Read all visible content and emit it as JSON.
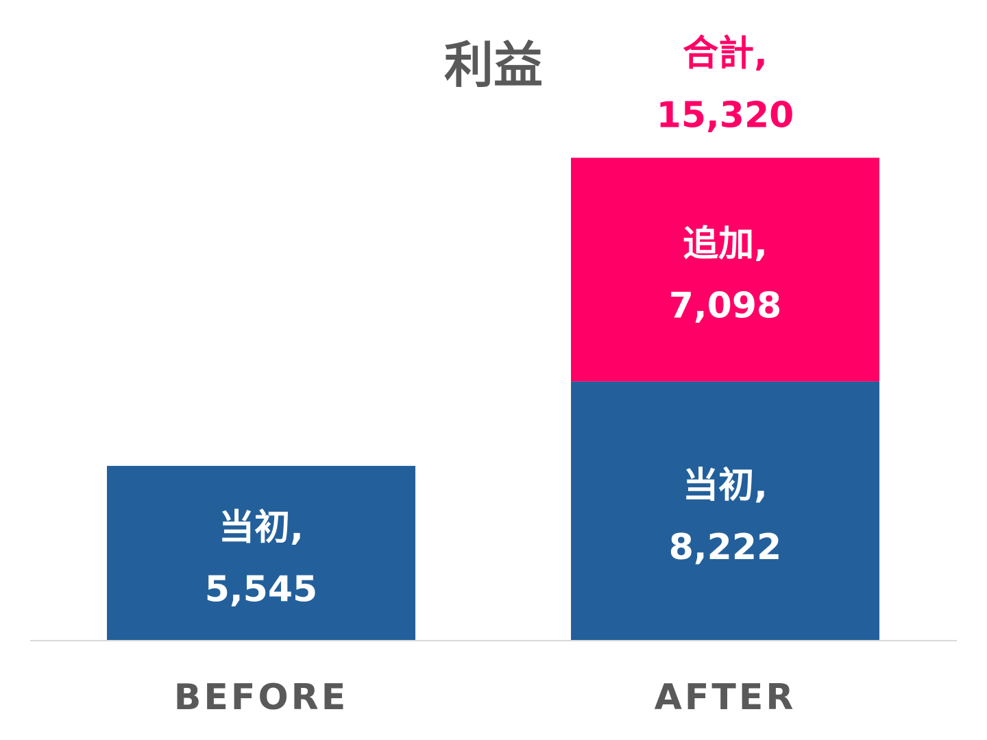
{
  "chart_data": {
    "type": "bar",
    "stacked": true,
    "title": "利益",
    "categories": [
      "BEFORE",
      "AFTER"
    ],
    "series": [
      {
        "name": "当初",
        "values": [
          5545,
          8222
        ],
        "labels": [
          "当初,",
          "当初,"
        ],
        "value_labels": [
          "5,545",
          "8,222"
        ],
        "color": "#23609B"
      },
      {
        "name": "追加",
        "values": [
          null,
          7098
        ],
        "labels": [
          "",
          "追加,"
        ],
        "value_labels": [
          "",
          "7,098"
        ],
        "color": "#FF0066"
      }
    ],
    "totals": {
      "category_index": 1,
      "label": "合計,",
      "value": 15320,
      "value_label": "15,320",
      "color": "#FF0066"
    },
    "ylim": [
      0,
      18500
    ],
    "grid": false,
    "legend": "none",
    "axis_color": "#D9D9D9"
  }
}
